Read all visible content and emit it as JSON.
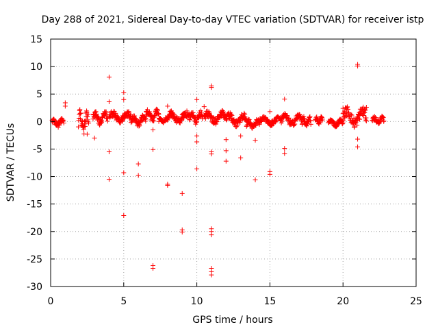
{
  "chart_data": {
    "type": "scatter",
    "title": "Day 288 of 2021, Sidereal Day-to-day VTEC variation (SDTVAR) for receiver istp",
    "xlabel": "GPS time / hours",
    "ylabel": "SDTVAR / TECUs",
    "xlim": [
      0,
      25
    ],
    "ylim": [
      -30,
      15
    ],
    "xticks": [
      0,
      5,
      10,
      15,
      20,
      25
    ],
    "yticks": [
      -30,
      -25,
      -20,
      -15,
      -10,
      -5,
      0,
      5,
      10,
      15
    ],
    "grid": true,
    "marker": "+",
    "color": "#ff0000",
    "series": [
      {
        "name": "SDTVAR",
        "dense_band": [
          {
            "x0": 0.1,
            "x1": 0.9,
            "ymin": -1.2,
            "ymax": 0.8
          },
          {
            "x0": 1.9,
            "x1": 2.6,
            "ymin": -2.5,
            "ymax": 2.5
          },
          {
            "x0": 2.9,
            "x1": 3.9,
            "ymin": -0.8,
            "ymax": 2.0
          },
          {
            "x0": 4.0,
            "x1": 5.5,
            "ymin": -0.5,
            "ymax": 2.0
          },
          {
            "x0": 5.5,
            "x1": 6.5,
            "ymin": -1.0,
            "ymax": 1.2
          },
          {
            "x0": 6.5,
            "x1": 7.4,
            "ymin": -0.3,
            "ymax": 2.3
          },
          {
            "x0": 7.4,
            "x1": 8.0,
            "ymin": -0.3,
            "ymax": 0.8
          },
          {
            "x0": 8.0,
            "x1": 9.5,
            "ymin": -0.5,
            "ymax": 2.0
          },
          {
            "x0": 9.5,
            "x1": 10.4,
            "ymin": -0.5,
            "ymax": 2.0
          },
          {
            "x0": 10.5,
            "x1": 12.0,
            "ymin": -0.6,
            "ymax": 2.0
          },
          {
            "x0": 12.0,
            "x1": 13.4,
            "ymin": -1.0,
            "ymax": 1.7
          },
          {
            "x0": 13.4,
            "x1": 14.3,
            "ymin": -1.5,
            "ymax": 0.5
          },
          {
            "x0": 14.3,
            "x1": 15.8,
            "ymin": -0.8,
            "ymax": 1.0
          },
          {
            "x0": 15.8,
            "x1": 17.2,
            "ymin": -1.0,
            "ymax": 1.5
          },
          {
            "x0": 17.2,
            "x1": 17.8,
            "ymin": -1.2,
            "ymax": 1.0
          },
          {
            "x0": 18.1,
            "x1": 18.6,
            "ymin": -0.5,
            "ymax": 1.0
          },
          {
            "x0": 19.0,
            "x1": 20.0,
            "ymin": -1.0,
            "ymax": 0.5
          },
          {
            "x0": 20.0,
            "x1": 21.6,
            "ymin": -1.2,
            "ymax": 2.8
          },
          {
            "x0": 22.0,
            "x1": 22.8,
            "ymin": -0.5,
            "ymax": 1.0
          }
        ],
        "points": [
          [
            1.0,
            3.4
          ],
          [
            1.0,
            2.8
          ],
          [
            4.0,
            8.1
          ],
          [
            4.0,
            3.6
          ],
          [
            4.0,
            -5.5
          ],
          [
            4.0,
            -10.5
          ],
          [
            5.0,
            5.3
          ],
          [
            5.0,
            4.0
          ],
          [
            5.0,
            -9.3
          ],
          [
            5.0,
            -17.1
          ],
          [
            6.0,
            -7.7
          ],
          [
            6.0,
            -9.8
          ],
          [
            7.0,
            -1.5
          ],
          [
            7.0,
            -5.1
          ],
          [
            7.0,
            -26.2
          ],
          [
            7.0,
            -26.7
          ],
          [
            8.0,
            2.8
          ],
          [
            8.0,
            -11.4
          ],
          [
            8.0,
            -11.6
          ],
          [
            9.0,
            -13.1
          ],
          [
            9.0,
            -19.7
          ],
          [
            9.0,
            -20.1
          ],
          [
            10.0,
            4.0
          ],
          [
            10.0,
            -2.6
          ],
          [
            10.0,
            -3.7
          ],
          [
            10.0,
            -8.6
          ],
          [
            10.5,
            2.7
          ],
          [
            11.0,
            6.5
          ],
          [
            11.0,
            6.2
          ],
          [
            11.0,
            -5.5
          ],
          [
            11.0,
            -5.9
          ],
          [
            11.0,
            -19.5
          ],
          [
            11.0,
            -20.0
          ],
          [
            11.0,
            -20.6
          ],
          [
            11.0,
            -26.7
          ],
          [
            11.0,
            -27.3
          ],
          [
            11.0,
            -27.9
          ],
          [
            12.0,
            -3.3
          ],
          [
            12.0,
            -5.3
          ],
          [
            12.0,
            -7.2
          ],
          [
            13.0,
            -2.6
          ],
          [
            13.0,
            -6.6
          ],
          [
            14.0,
            -3.4
          ],
          [
            14.0,
            -10.6
          ],
          [
            15.0,
            1.8
          ],
          [
            15.0,
            -9.1
          ],
          [
            15.0,
            -9.6
          ],
          [
            16.0,
            4.1
          ],
          [
            16.0,
            -4.9
          ],
          [
            16.0,
            -5.8
          ],
          [
            20.0,
            2.4
          ],
          [
            21.0,
            10.4
          ],
          [
            21.0,
            10.1
          ],
          [
            21.0,
            -3.2
          ],
          [
            21.0,
            -4.6
          ],
          [
            21.6,
            2.6
          ],
          [
            3.0,
            -3.0
          ],
          [
            2.5,
            -2.3
          ]
        ]
      }
    ]
  }
}
